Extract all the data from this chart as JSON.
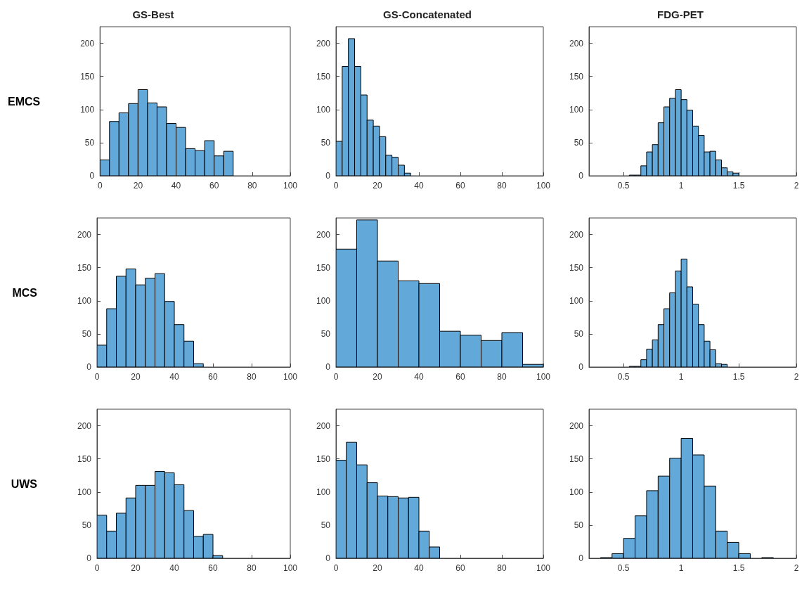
{
  "chart_data": [
    {
      "type": "histogram",
      "title": "GS-Best",
      "ylabel": "EMCS",
      "bins": [
        0,
        5,
        10,
        15,
        20,
        25,
        30,
        35,
        40,
        45,
        50,
        55,
        60,
        65,
        70
      ],
      "values": [
        24,
        82,
        95,
        109,
        130,
        110,
        104,
        79,
        73,
        41,
        38,
        53,
        30,
        37
      ],
      "color": "#62a8d8",
      "xlim": [
        0,
        100
      ],
      "xticks": [
        0,
        20,
        40,
        60,
        80,
        100
      ],
      "ylim": [
        0,
        225
      ],
      "yticks": [
        0,
        50,
        100,
        150,
        200
      ],
      "grid": false
    },
    {
      "type": "histogram",
      "title": "GS-Concatenated",
      "bins": [
        0,
        3,
        6,
        9,
        12,
        15,
        18,
        21,
        24,
        27,
        30,
        33,
        36
      ],
      "values": [
        52,
        165,
        207,
        165,
        122,
        84,
        75,
        59,
        31,
        28,
        16,
        4
      ],
      "color": "#62a8d8",
      "xlim": [
        0,
        100
      ],
      "xticks": [
        0,
        20,
        40,
        60,
        80,
        100
      ],
      "ylim": [
        0,
        225
      ],
      "yticks": [
        0,
        50,
        100,
        150,
        200
      ],
      "grid": false
    },
    {
      "type": "histogram",
      "title": "FDG-PET",
      "bins": [
        0.55,
        0.6,
        0.65,
        0.7,
        0.75,
        0.8,
        0.85,
        0.9,
        0.95,
        1.0,
        1.05,
        1.1,
        1.15,
        1.2,
        1.25,
        1.3,
        1.35,
        1.4,
        1.45,
        1.5
      ],
      "values": [
        1,
        1,
        15,
        36,
        47,
        80,
        104,
        117,
        130,
        115,
        99,
        75,
        61,
        36,
        37,
        24,
        12,
        6,
        4
      ],
      "color": "#62a8d8",
      "xlim": [
        0.2,
        2
      ],
      "xticks": [
        0.5,
        1,
        1.5,
        2
      ],
      "ylim": [
        0,
        225
      ],
      "yticks": [
        0,
        50,
        100,
        150,
        200
      ],
      "grid": false
    },
    {
      "type": "histogram",
      "ylabel": "MCS",
      "bins": [
        0,
        5,
        10,
        15,
        20,
        25,
        30,
        35,
        40,
        45,
        50,
        55
      ],
      "values": [
        33,
        88,
        137,
        148,
        124,
        134,
        141,
        99,
        64,
        39,
        5
      ],
      "color": "#62a8d8",
      "xlim": [
        0,
        100
      ],
      "xticks": [
        0,
        20,
        40,
        60,
        80,
        100
      ],
      "ylim": [
        0,
        225
      ],
      "yticks": [
        0,
        50,
        100,
        150,
        200
      ],
      "grid": false
    },
    {
      "type": "histogram",
      "bins": [
        0,
        10,
        20,
        30,
        40,
        50,
        60,
        70,
        80,
        90,
        100
      ],
      "values": [
        178,
        222,
        160,
        130,
        126,
        54,
        48,
        40,
        52,
        4
      ],
      "color": "#62a8d8",
      "xlim": [
        0,
        100
      ],
      "xticks": [
        0,
        20,
        40,
        60,
        80,
        100
      ],
      "ylim": [
        0,
        225
      ],
      "yticks": [
        0,
        50,
        100,
        150,
        200
      ],
      "grid": false
    },
    {
      "type": "histogram",
      "bins": [
        0.55,
        0.6,
        0.65,
        0.7,
        0.75,
        0.8,
        0.85,
        0.9,
        0.95,
        1.0,
        1.05,
        1.1,
        1.15,
        1.2,
        1.25,
        1.3,
        1.35,
        1.4
      ],
      "values": [
        1,
        1,
        11,
        27,
        41,
        64,
        88,
        112,
        145,
        163,
        121,
        95,
        64,
        39,
        26,
        5,
        4
      ],
      "color": "#62a8d8",
      "xlim": [
        0.2,
        2
      ],
      "xticks": [
        0.5,
        1,
        1.5,
        2
      ],
      "ylim": [
        0,
        225
      ],
      "yticks": [
        0,
        50,
        100,
        150,
        200
      ],
      "grid": false
    },
    {
      "type": "histogram",
      "ylabel": "UWS",
      "bins": [
        0,
        5,
        10,
        15,
        20,
        25,
        30,
        35,
        40,
        45,
        50,
        55,
        60,
        65
      ],
      "values": [
        65,
        41,
        68,
        91,
        110,
        110,
        131,
        129,
        111,
        72,
        33,
        36,
        4
      ],
      "color": "#62a8d8",
      "xlim": [
        0,
        100
      ],
      "xticks": [
        0,
        20,
        40,
        60,
        80,
        100
      ],
      "ylim": [
        0,
        225
      ],
      "yticks": [
        0,
        50,
        100,
        150,
        200
      ],
      "grid": false
    },
    {
      "type": "histogram",
      "bins": [
        0,
        5,
        10,
        15,
        20,
        25,
        30,
        35,
        40,
        45,
        50
      ],
      "values": [
        148,
        175,
        141,
        114,
        94,
        93,
        91,
        92,
        41,
        17
      ],
      "color": "#62a8d8",
      "xlim": [
        0,
        100
      ],
      "xticks": [
        0,
        20,
        40,
        60,
        80,
        100
      ],
      "ylim": [
        0,
        225
      ],
      "yticks": [
        0,
        50,
        100,
        150,
        200
      ],
      "grid": false
    },
    {
      "type": "histogram",
      "bins": [
        0.3,
        0.4,
        0.5,
        0.6,
        0.7,
        0.8,
        0.9,
        1.0,
        1.1,
        1.2,
        1.3,
        1.4,
        1.5,
        1.6,
        1.7,
        1.8
      ],
      "values": [
        1,
        7,
        30,
        64,
        102,
        124,
        151,
        181,
        156,
        109,
        41,
        24,
        7,
        0,
        1
      ],
      "color": "#62a8d8",
      "xlim": [
        0.2,
        2
      ],
      "xticks": [
        0.5,
        1,
        1.5,
        2
      ],
      "ylim": [
        0,
        225
      ],
      "yticks": [
        0,
        50,
        100,
        150,
        200
      ],
      "grid": false
    }
  ]
}
